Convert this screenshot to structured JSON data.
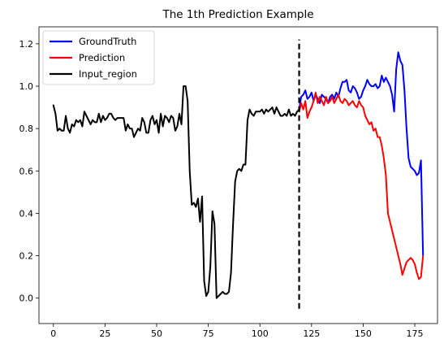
{
  "chart_data": {
    "type": "line",
    "title": "The 1th Prediction Example",
    "xlabel": "",
    "ylabel": "",
    "xlim": [
      -7,
      186
    ],
    "ylim": [
      -0.12,
      1.28
    ],
    "xticks": [
      0,
      25,
      50,
      75,
      100,
      125,
      150,
      175
    ],
    "xtick_labels": [
      "0",
      "25",
      "50",
      "75",
      "100",
      "125",
      "150",
      "175"
    ],
    "yticks": [
      0.0,
      0.2,
      0.4,
      0.6,
      0.8,
      1.0,
      1.2
    ],
    "ytick_labels": [
      "0.0",
      "0.2",
      "0.4",
      "0.6",
      "0.8",
      "1.0",
      "1.2"
    ],
    "grid": false,
    "legend_position": "top-left",
    "divider": {
      "x": 119,
      "y_from": -0.05,
      "y_to": 1.22,
      "style": "dashed",
      "color": "#000000"
    },
    "series": [
      {
        "name": "GroundTruth",
        "color": "#0000ff",
        "x": [
          119,
          120,
          121,
          122,
          123,
          124,
          125,
          126,
          127,
          128,
          129,
          130,
          131,
          132,
          133,
          134,
          135,
          136,
          137,
          138,
          139,
          140,
          141,
          142,
          143,
          144,
          145,
          146,
          147,
          148,
          149,
          150,
          151,
          152,
          153,
          154,
          155,
          156,
          157,
          158,
          159,
          160,
          161,
          162,
          163,
          164,
          165,
          166,
          167,
          168,
          169,
          170,
          171,
          172,
          173,
          174,
          175,
          176,
          177,
          178,
          179
        ],
        "y": [
          0.89,
          0.95,
          0.96,
          0.98,
          0.94,
          0.95,
          0.97,
          0.93,
          0.96,
          0.94,
          0.92,
          0.96,
          0.95,
          0.94,
          0.92,
          0.95,
          0.96,
          0.94,
          0.97,
          0.95,
          0.99,
          1.02,
          1.02,
          1.03,
          0.98,
          0.97,
          1.0,
          0.99,
          0.97,
          0.94,
          0.95,
          0.98,
          1.0,
          1.03,
          1.01,
          1.0,
          1.0,
          1.01,
          0.99,
          1.0,
          1.05,
          1.02,
          1.04,
          1.02,
          1.0,
          0.96,
          0.88,
          1.08,
          1.16,
          1.12,
          1.1,
          0.98,
          0.8,
          0.66,
          0.62,
          0.61,
          0.6,
          0.58,
          0.59,
          0.65,
          0.2
        ]
      },
      {
        "name": "Prediction",
        "color": "#ff0000",
        "x": [
          119,
          120,
          121,
          122,
          123,
          124,
          125,
          126,
          127,
          128,
          129,
          130,
          131,
          132,
          133,
          134,
          135,
          136,
          137,
          138,
          139,
          140,
          141,
          142,
          143,
          144,
          145,
          146,
          147,
          148,
          149,
          150,
          151,
          152,
          153,
          154,
          155,
          156,
          157,
          158,
          159,
          160,
          161,
          162,
          163,
          164,
          165,
          166,
          167,
          168,
          169,
          170,
          171,
          172,
          173,
          174,
          175,
          176,
          177,
          178,
          179
        ],
        "y": [
          0.88,
          0.92,
          0.89,
          0.93,
          0.85,
          0.88,
          0.9,
          0.93,
          0.97,
          0.92,
          0.95,
          0.93,
          0.91,
          0.95,
          0.92,
          0.93,
          0.95,
          0.92,
          0.94,
          0.96,
          0.93,
          0.92,
          0.94,
          0.93,
          0.91,
          0.92,
          0.93,
          0.91,
          0.9,
          0.93,
          0.91,
          0.9,
          0.86,
          0.84,
          0.82,
          0.83,
          0.79,
          0.8,
          0.76,
          0.76,
          0.72,
          0.66,
          0.58,
          0.4,
          0.36,
          0.32,
          0.28,
          0.24,
          0.2,
          0.16,
          0.11,
          0.14,
          0.17,
          0.18,
          0.19,
          0.18,
          0.16,
          0.12,
          0.09,
          0.1,
          0.2
        ]
      },
      {
        "name": "Input_region",
        "color": "#000000",
        "x": [
          0,
          1,
          2,
          3,
          4,
          5,
          6,
          7,
          8,
          9,
          10,
          11,
          12,
          13,
          14,
          15,
          16,
          17,
          18,
          19,
          20,
          21,
          22,
          23,
          24,
          25,
          26,
          27,
          28,
          29,
          30,
          31,
          32,
          33,
          34,
          35,
          36,
          37,
          38,
          39,
          40,
          41,
          42,
          43,
          44,
          45,
          46,
          47,
          48,
          49,
          50,
          51,
          52,
          53,
          54,
          55,
          56,
          57,
          58,
          59,
          60,
          61,
          62,
          63,
          64,
          65,
          66,
          67,
          68,
          69,
          70,
          71,
          72,
          73,
          74,
          75,
          76,
          77,
          78,
          79,
          80,
          81,
          82,
          83,
          84,
          85,
          86,
          87,
          88,
          89,
          90,
          91,
          92,
          93,
          94,
          95,
          96,
          97,
          98,
          99,
          100,
          101,
          102,
          103,
          104,
          105,
          106,
          107,
          108,
          109,
          110,
          111,
          112,
          113,
          114,
          115,
          116,
          117,
          118,
          119
        ],
        "y": [
          0.91,
          0.87,
          0.79,
          0.8,
          0.79,
          0.79,
          0.86,
          0.8,
          0.78,
          0.82,
          0.81,
          0.84,
          0.83,
          0.84,
          0.81,
          0.88,
          0.86,
          0.84,
          0.82,
          0.84,
          0.83,
          0.83,
          0.87,
          0.83,
          0.86,
          0.84,
          0.85,
          0.87,
          0.87,
          0.85,
          0.84,
          0.85,
          0.85,
          0.85,
          0.85,
          0.79,
          0.82,
          0.8,
          0.8,
          0.76,
          0.78,
          0.8,
          0.79,
          0.85,
          0.83,
          0.78,
          0.78,
          0.84,
          0.86,
          0.82,
          0.84,
          0.78,
          0.87,
          0.81,
          0.86,
          0.85,
          0.83,
          0.86,
          0.85,
          0.79,
          0.81,
          0.87,
          0.82,
          1.0,
          1.0,
          0.93,
          0.6,
          0.44,
          0.45,
          0.43,
          0.47,
          0.36,
          0.48,
          0.08,
          0.01,
          0.03,
          0.15,
          0.41,
          0.35,
          0.0,
          0.01,
          0.02,
          0.03,
          0.02,
          0.02,
          0.03,
          0.12,
          0.35,
          0.55,
          0.6,
          0.61,
          0.6,
          0.63,
          0.63,
          0.84,
          0.89,
          0.87,
          0.86,
          0.88,
          0.88,
          0.88,
          0.89,
          0.87,
          0.89,
          0.88,
          0.89,
          0.9,
          0.87,
          0.9,
          0.88,
          0.86,
          0.86,
          0.87,
          0.86,
          0.89,
          0.86,
          0.87,
          0.86,
          0.88,
          0.89
        ]
      }
    ]
  }
}
